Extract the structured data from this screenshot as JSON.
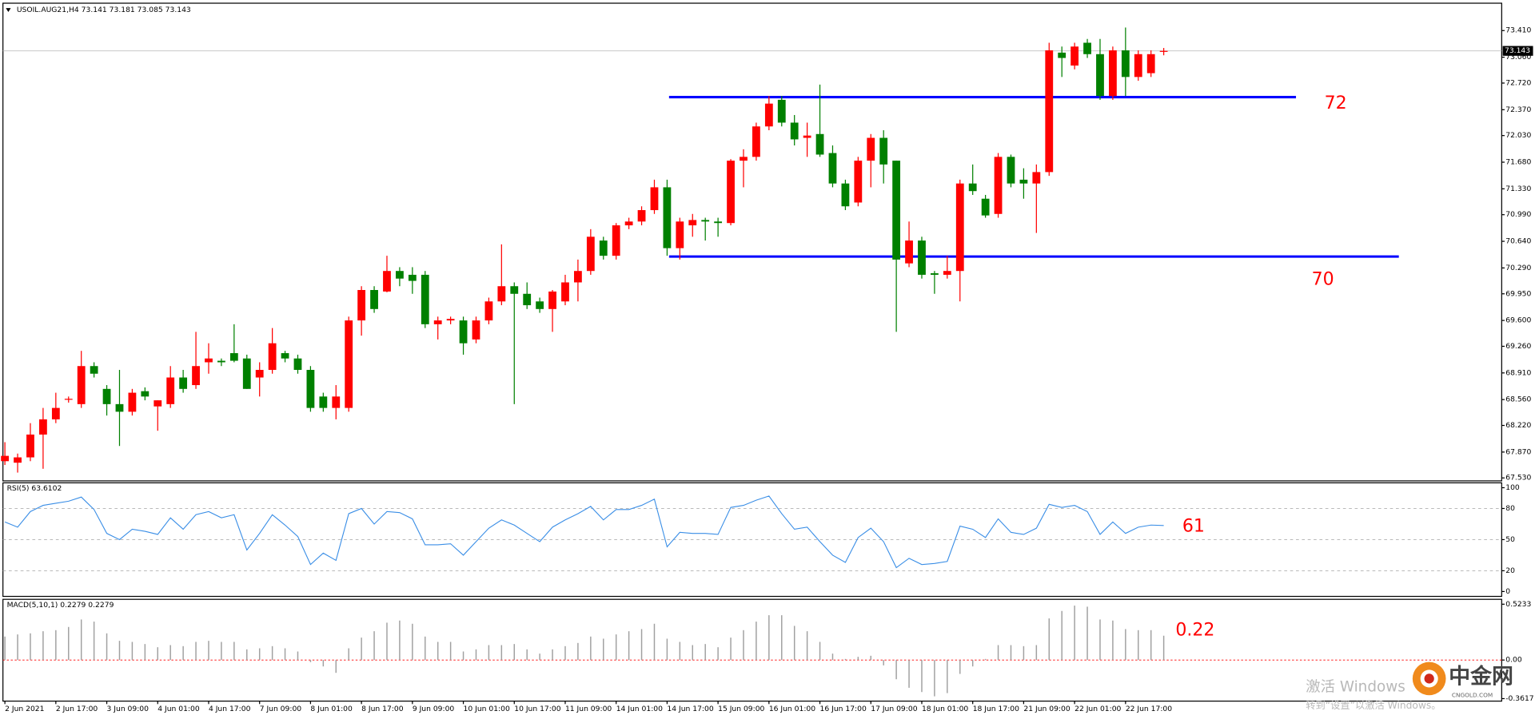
{
  "chart_data": [
    {
      "type": "candlestick",
      "title": "USOIL.AUG21,H4 73.141 73.181 73.085 73.143",
      "categories": [
        "2 Jun 2021",
        null,
        null,
        null,
        "2 Jun 17:00",
        null,
        null,
        null,
        "3 Jun 09:00",
        null,
        null,
        null,
        "4 Jun 01:00",
        null,
        null,
        null,
        "4 Jun 17:00",
        null,
        null,
        null,
        "7 Jun 09:00",
        null,
        null,
        null,
        "8 Jun 01:00",
        null,
        null,
        null,
        "8 Jun 17:00",
        null,
        null,
        null,
        "9 Jun 09:00",
        null,
        null,
        null,
        "10 Jun 01:00",
        null,
        null,
        null,
        "10 Jun 17:00",
        null,
        null,
        null,
        "11 Jun 09:00",
        null,
        null,
        null,
        "14 Jun 01:00",
        null,
        null,
        null,
        "14 Jun 17:00",
        null,
        null,
        null,
        "15 Jun 09:00",
        null,
        null,
        null,
        "16 Jun 01:00",
        null,
        null,
        null,
        "16 Jun 17:00",
        null,
        null,
        null,
        "17 Jun 09:00",
        null,
        null,
        null,
        "18 Jun 01:00",
        null,
        null,
        null,
        "18 Jun 17:00",
        null,
        null,
        null,
        "21 Jun 09:00",
        null,
        null,
        null,
        "22 Jun 01:00",
        null,
        null,
        null,
        "22 Jun 17:00",
        null,
        null,
        null
      ],
      "open": [
        67.75,
        67.73,
        67.8,
        68.1,
        68.3,
        68.56,
        68.5,
        69.0,
        68.7,
        68.5,
        68.4,
        68.67,
        68.47,
        68.5,
        68.85,
        68.75,
        69.05,
        69.07,
        69.17,
        69.1,
        68.85,
        68.95,
        69.17,
        69.1,
        68.95,
        68.6,
        68.45,
        68.45,
        69.6,
        70.0,
        69.98,
        70.25,
        70.2,
        70.2,
        69.55,
        69.6,
        69.6,
        69.35,
        69.6,
        69.85,
        70.05,
        69.95,
        69.85,
        69.75,
        69.85,
        70.1,
        70.25,
        70.65,
        70.45,
        70.85,
        70.9,
        71.05,
        71.35,
        70.55,
        70.85,
        70.92,
        70.9,
        70.88,
        71.7,
        71.75,
        72.15,
        72.5,
        72.2,
        72.0,
        72.05,
        71.8,
        71.4,
        71.15,
        71.7,
        72.0,
        71.7,
        70.35,
        70.65,
        70.22,
        70.2,
        70.25,
        71.4,
        71.2,
        71.0,
        71.75,
        71.45,
        71.4,
        71.55,
        73.12,
        72.95,
        73.25,
        73.1,
        72.55,
        73.15,
        72.8,
        72.85,
        73.141
      ],
      "high": [
        68.0,
        67.85,
        68.25,
        68.45,
        68.65,
        68.6,
        69.2,
        69.05,
        68.75,
        68.95,
        68.7,
        68.72,
        68.55,
        69.0,
        68.95,
        69.45,
        69.3,
        69.1,
        69.55,
        69.15,
        69.05,
        69.5,
        69.2,
        69.15,
        69.0,
        68.65,
        68.75,
        69.65,
        70.05,
        70.05,
        70.45,
        70.3,
        70.3,
        70.25,
        69.65,
        69.65,
        69.65,
        69.65,
        69.9,
        70.6,
        70.1,
        70.1,
        69.9,
        70.0,
        70.2,
        70.4,
        70.8,
        70.7,
        70.88,
        70.95,
        71.1,
        71.45,
        71.45,
        70.95,
        71.0,
        70.95,
        70.95,
        71.72,
        71.85,
        72.2,
        72.55,
        72.55,
        72.3,
        72.2,
        72.7,
        71.9,
        71.45,
        71.75,
        72.05,
        72.1,
        71.7,
        70.9,
        70.7,
        70.25,
        70.45,
        71.45,
        71.65,
        71.25,
        71.8,
        71.78,
        71.6,
        71.65,
        73.25,
        73.2,
        73.25,
        73.3,
        73.3,
        73.2,
        73.45,
        73.15,
        73.15,
        73.181
      ],
      "low": [
        67.7,
        67.6,
        67.75,
        67.65,
        68.25,
        68.52,
        68.45,
        68.85,
        68.35,
        67.95,
        68.35,
        68.55,
        68.15,
        68.45,
        68.65,
        68.7,
        68.9,
        69.0,
        69.05,
        68.7,
        68.6,
        68.9,
        69.05,
        68.9,
        68.4,
        68.4,
        68.3,
        68.4,
        69.4,
        69.7,
        69.97,
        70.05,
        69.95,
        69.5,
        69.35,
        69.55,
        69.15,
        69.3,
        69.55,
        69.8,
        68.5,
        69.75,
        69.7,
        69.45,
        69.8,
        69.85,
        70.2,
        70.4,
        70.4,
        70.8,
        70.85,
        71.0,
        70.45,
        70.4,
        70.7,
        70.65,
        70.7,
        70.85,
        71.35,
        71.7,
        72.1,
        72.15,
        71.9,
        71.75,
        71.75,
        71.35,
        71.05,
        71.1,
        71.35,
        71.4,
        69.45,
        70.3,
        70.15,
        69.95,
        70.15,
        69.85,
        71.25,
        70.95,
        70.95,
        71.35,
        71.2,
        70.75,
        71.5,
        72.8,
        72.9,
        73.05,
        72.5,
        72.5,
        72.55,
        72.75,
        72.8,
        73.085
      ],
      "close": [
        67.82,
        67.8,
        68.1,
        68.3,
        68.45,
        68.57,
        69.0,
        68.9,
        68.5,
        68.4,
        68.65,
        68.6,
        68.55,
        68.85,
        68.7,
        69.0,
        69.1,
        69.05,
        69.07,
        68.7,
        68.95,
        69.3,
        69.1,
        68.95,
        68.45,
        68.45,
        68.6,
        69.6,
        70.0,
        69.75,
        70.25,
        70.15,
        70.12,
        69.55,
        69.6,
        69.62,
        69.3,
        69.6,
        69.85,
        70.05,
        69.95,
        69.8,
        69.75,
        69.98,
        70.1,
        70.25,
        70.7,
        70.45,
        70.85,
        70.9,
        71.05,
        71.35,
        70.55,
        70.9,
        70.92,
        70.9,
        70.88,
        71.7,
        71.75,
        72.15,
        72.45,
        72.2,
        71.98,
        72.03,
        71.78,
        71.4,
        71.1,
        71.7,
        72.0,
        71.65,
        70.4,
        70.65,
        70.2,
        70.2,
        70.25,
        71.4,
        71.3,
        70.98,
        71.75,
        71.4,
        71.4,
        71.55,
        73.15,
        73.05,
        73.2,
        73.1,
        72.55,
        73.15,
        72.8,
        73.1,
        73.1,
        73.143
      ],
      "up_color": "#ff0000",
      "down_color": "#008000",
      "ylim": [
        67.504,
        73.744
      ],
      "yticks": [
        {
          "value": 73.41,
          "label": "73.410"
        },
        {
          "value": 73.06,
          "label": "73.060"
        },
        {
          "value": 72.72,
          "label": "72.720"
        },
        {
          "value": 72.37,
          "label": "72.370"
        },
        {
          "value": 72.03,
          "label": "72.030"
        },
        {
          "value": 71.68,
          "label": "71.680"
        },
        {
          "value": 71.33,
          "label": "71.330"
        },
        {
          "value": 70.99,
          "label": "70.990"
        },
        {
          "value": 70.64,
          "label": "70.640"
        },
        {
          "value": 70.29,
          "label": "70.290"
        },
        {
          "value": 69.95,
          "label": "69.950"
        },
        {
          "value": 69.6,
          "label": "69.600"
        },
        {
          "value": 69.26,
          "label": "69.260"
        },
        {
          "value": 68.91,
          "label": "68.910"
        },
        {
          "value": 68.56,
          "label": "68.560"
        },
        {
          "value": 68.22,
          "label": "68.220"
        },
        {
          "value": 67.87,
          "label": "67.870"
        },
        {
          "value": 67.53,
          "label": "67.530"
        }
      ],
      "last_price": {
        "value": 73.143,
        "label": "73.143"
      },
      "hlines": [
        72.535,
        70.44
      ],
      "hline_color": "#0000ff",
      "annotations": [
        "72",
        "70"
      ],
      "annotation_color": "#ff0000"
    },
    {
      "type": "line",
      "title": "RSI(5) 63.6102",
      "values": [
        67,
        62,
        77,
        83,
        85,
        87,
        91,
        79,
        56,
        50,
        60,
        58,
        55,
        71,
        60,
        74,
        77,
        71,
        74,
        40,
        56,
        74,
        64,
        53,
        26,
        37,
        30,
        75,
        80,
        65,
        77,
        76,
        70,
        45,
        45,
        46,
        35,
        48,
        61,
        69,
        64,
        56,
        48,
        62,
        69,
        75,
        82,
        69,
        79,
        79,
        83,
        89,
        43,
        57,
        56,
        56,
        55,
        81,
        83,
        88,
        92,
        75,
        60,
        62,
        48,
        35,
        28,
        52,
        61,
        48,
        23,
        32,
        26,
        27,
        29,
        63,
        60,
        52,
        70,
        57,
        55,
        61,
        84,
        81,
        83,
        77,
        55,
        67,
        56,
        62,
        64,
        63.61
      ],
      "color": "#3a8ee6",
      "ylim": [
        -4.7,
        104.7
      ],
      "yticks": [
        100,
        80,
        50,
        20,
        0
      ],
      "levels": [
        80,
        50,
        20
      ],
      "annotations": [
        "61"
      ],
      "annotation_color": "#ff0000"
    },
    {
      "type": "bar",
      "title": "MACD(5,10,1) 0.2279 0.2279",
      "values": [
        0.22,
        0.24,
        0.25,
        0.27,
        0.28,
        0.31,
        0.38,
        0.36,
        0.25,
        0.18,
        0.17,
        0.15,
        0.12,
        0.14,
        0.13,
        0.17,
        0.18,
        0.17,
        0.17,
        0.1,
        0.11,
        0.13,
        0.11,
        0.08,
        -0.02,
        -0.06,
        -0.12,
        0.11,
        0.21,
        0.27,
        0.35,
        0.37,
        0.34,
        0.22,
        0.17,
        0.17,
        0.08,
        0.1,
        0.14,
        0.14,
        0.15,
        0.1,
        0.06,
        0.1,
        0.13,
        0.16,
        0.22,
        0.2,
        0.24,
        0.27,
        0.29,
        0.34,
        0.2,
        0.17,
        0.14,
        0.15,
        0.12,
        0.21,
        0.28,
        0.36,
        0.42,
        0.42,
        0.32,
        0.27,
        0.17,
        0.06,
        0.01,
        0.03,
        0.04,
        -0.05,
        -0.18,
        -0.26,
        -0.3,
        -0.34,
        -0.31,
        -0.13,
        -0.06,
        0.01,
        0.14,
        0.14,
        0.13,
        0.14,
        0.39,
        0.46,
        0.51,
        0.5,
        0.38,
        0.37,
        0.29,
        0.28,
        0.28,
        0.2279
      ],
      "color": "#a0a0a0",
      "zero_line_color": "#ff0000",
      "ylim": [
        -0.376,
        0.569
      ],
      "yticks": [
        0.5233,
        {
          "value": 0,
          "label": "0.00"
        },
        -0.3617
      ],
      "annotations": [
        "0.22"
      ],
      "annotation_color": "#ff0000"
    }
  ],
  "watermark": {
    "line1": "激活 Windows",
    "line2": "转到“设置”以激活 Windows。"
  },
  "logo": {
    "name": "中金网",
    "site": "CNGOLD.COM"
  }
}
